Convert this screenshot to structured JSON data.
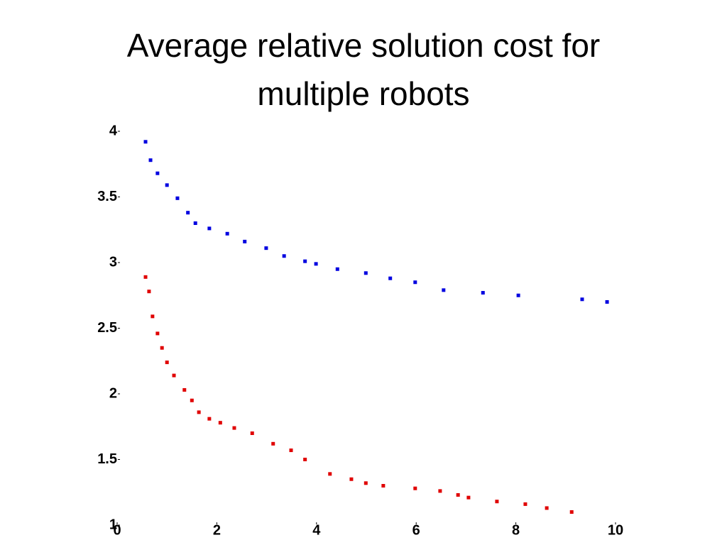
{
  "chart_data": {
    "type": "scatter",
    "title": "Average relative solution cost for multiple robots",
    "xlim": [
      0,
      10
    ],
    "xticks": [
      0,
      2,
      4,
      6,
      8,
      10
    ],
    "ylim": [
      1,
      4
    ],
    "yticks": [
      1,
      1.5,
      2,
      2.5,
      3,
      3.5,
      4
    ],
    "series": [
      {
        "color": "#0000e0",
        "x": [
          0.57,
          0.67,
          0.81,
          1.0,
          1.21,
          1.42,
          1.57,
          1.85,
          2.21,
          2.56,
          2.99,
          3.35,
          3.77,
          3.99,
          4.42,
          4.99,
          5.48,
          5.98,
          6.55,
          7.34,
          8.05,
          9.33,
          9.83
        ],
        "values": [
          3.92,
          3.78,
          3.68,
          3.59,
          3.49,
          3.38,
          3.3,
          3.26,
          3.22,
          3.16,
          3.11,
          3.05,
          3.01,
          2.99,
          2.95,
          2.92,
          2.88,
          2.85,
          2.79,
          2.77,
          2.75,
          2.72,
          2.7
        ]
      },
      {
        "color": "#e00000",
        "x": [
          0.57,
          0.64,
          0.71,
          0.81,
          0.9,
          1.0,
          1.14,
          1.35,
          1.5,
          1.64,
          1.85,
          2.07,
          2.35,
          2.71,
          3.13,
          3.49,
          3.77,
          4.27,
          4.7,
          4.99,
          5.34,
          5.98,
          6.48,
          6.84,
          7.05,
          7.62,
          8.19,
          8.62,
          9.12
        ],
        "values": [
          2.89,
          2.78,
          2.59,
          2.46,
          2.35,
          2.24,
          2.14,
          2.03,
          1.95,
          1.86,
          1.81,
          1.78,
          1.74,
          1.7,
          1.62,
          1.57,
          1.5,
          1.39,
          1.35,
          1.32,
          1.3,
          1.28,
          1.26,
          1.23,
          1.21,
          1.18,
          1.16,
          1.13,
          1.1
        ]
      }
    ]
  }
}
